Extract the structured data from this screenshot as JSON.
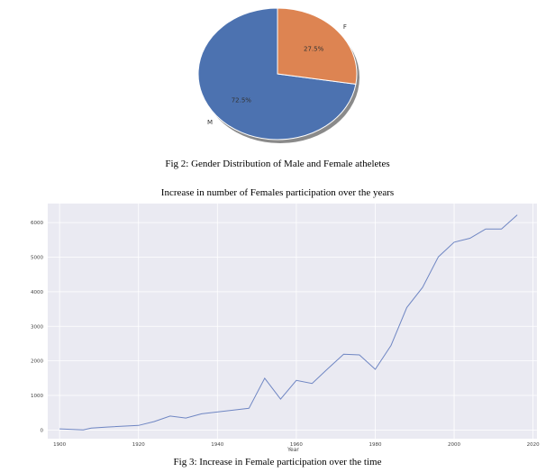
{
  "figure2_caption": "Fig 2: Gender Distribution of Male and Female atheletes",
  "figure3_caption": "Fig 3: Increase in Female participation over the time",
  "colors": {
    "male": "#4c72b0",
    "female": "#dd8452",
    "plot_bg": "#eaeaf2",
    "grid": "#ffffff",
    "line": "#6f86c3"
  },
  "chart_data": [
    {
      "type": "pie",
      "title": "",
      "slices": [
        {
          "label": "M",
          "value": 72.5,
          "pct_label": "72.5%"
        },
        {
          "label": "F",
          "value": 27.5,
          "pct_label": "27.5%"
        }
      ],
      "shadow": true
    },
    {
      "type": "line",
      "title": "Increase in number of Females participation over the years",
      "xlabel": "Year",
      "ylabel": "",
      "xlim": [
        1897,
        2021
      ],
      "ylim": [
        -250,
        6550
      ],
      "xticks": [
        1900,
        1920,
        1940,
        1960,
        1980,
        2000,
        2020
      ],
      "yticks": [
        0,
        1000,
        2000,
        3000,
        4000,
        5000,
        6000
      ],
      "grid": true,
      "series": [
        {
          "x": [
            1900,
            1906,
            1908,
            1912,
            1920,
            1924,
            1928,
            1932,
            1936,
            1948,
            1952,
            1956,
            1960,
            1964,
            1968,
            1972,
            1976,
            1980,
            1984,
            1988,
            1992,
            1996,
            2000,
            2004,
            2008,
            2012,
            2016
          ],
          "y": [
            33,
            6,
            55,
            87,
            134,
            244,
            404,
            347,
            468,
            628,
            1497,
            893,
            1435,
            1348,
            1777,
            2193,
            2172,
            1756,
            2447,
            3543,
            4124,
            5008,
            5431,
            5546,
            5816,
            5815,
            6223
          ]
        }
      ]
    }
  ]
}
